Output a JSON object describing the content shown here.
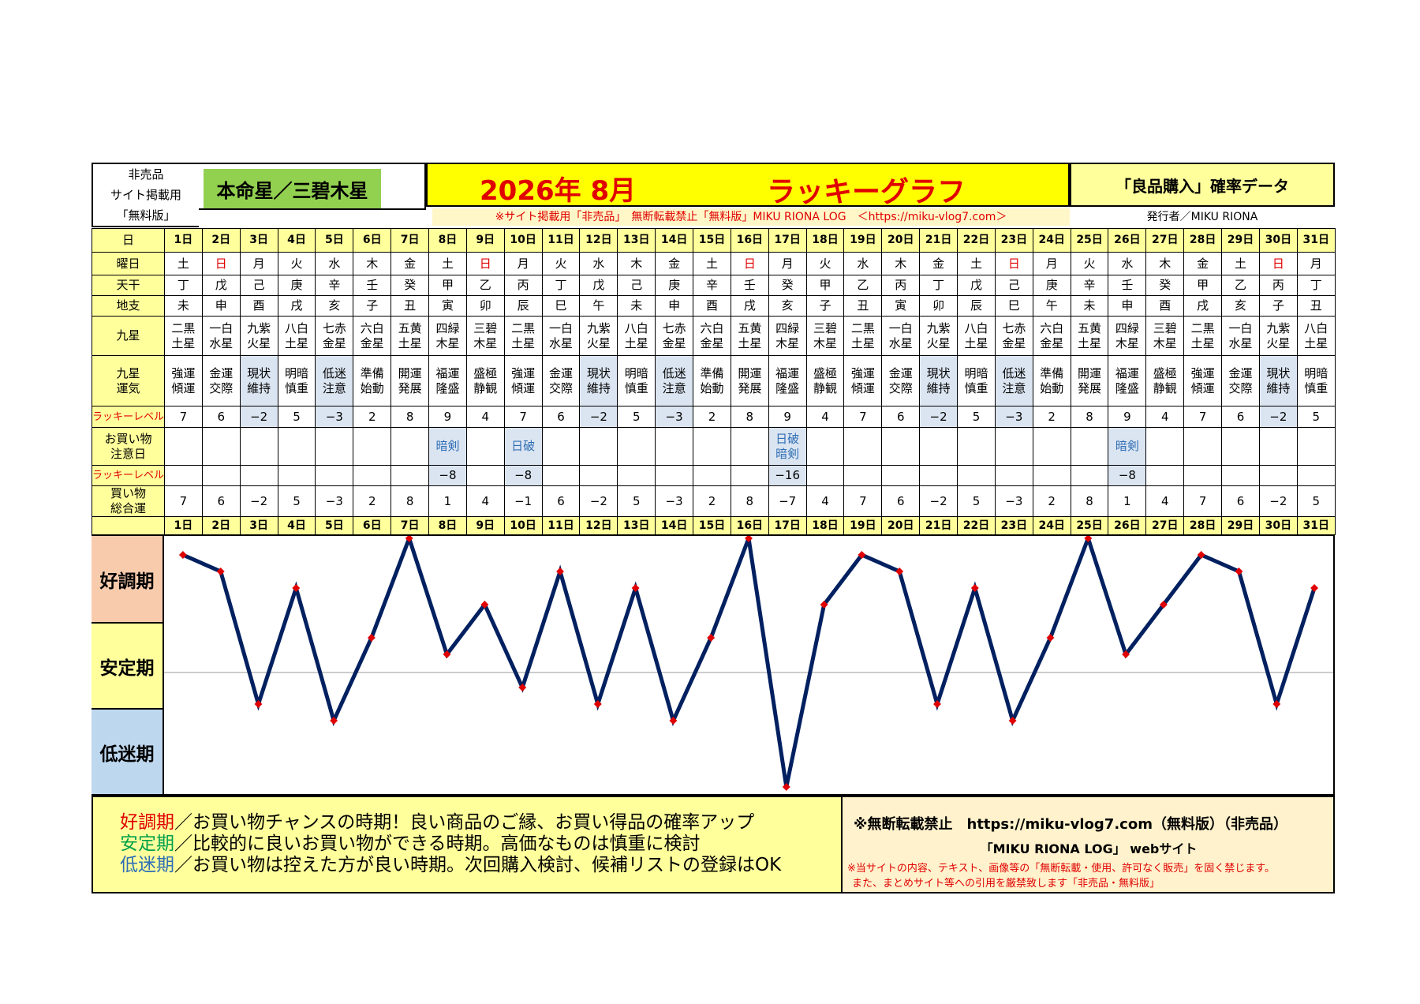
{
  "header": {
    "note_lines": [
      "非売品",
      "サイト掲載用",
      "「無料版」"
    ],
    "honmei": "本命星／三碧木星",
    "year_month": "2026年 8月",
    "lucky_graph": "ラッキーグラフ",
    "right_title": "「良品購入」確率データ",
    "red_notice": "※サイト掲載用「非売品」　無断転載禁止「無料版」MIKU RIONA LOG　＜https://miku-vlog7.com＞",
    "publisher": "発行者／MIKU RIONA"
  },
  "row_labels": {
    "day": "日",
    "weekday": "曜日",
    "tenkan": "天干",
    "chishi": "地支",
    "kyusei": "九星",
    "kyusei_unki": [
      "九星",
      "運気"
    ],
    "lucky_level": "ラッキーレベル",
    "caution": [
      "お買い物",
      "注意日"
    ],
    "lucky_level2": "ラッキーレベル",
    "total": [
      "買い物",
      "総合運"
    ]
  },
  "days": [
    "1日",
    "2日",
    "3日",
    "4日",
    "5日",
    "6日",
    "7日",
    "8日",
    "9日",
    "10日",
    "11日",
    "12日",
    "13日",
    "14日",
    "15日",
    "16日",
    "17日",
    "18日",
    "19日",
    "20日",
    "21日",
    "22日",
    "23日",
    "24日",
    "25日",
    "26日",
    "27日",
    "28日",
    "29日",
    "30日",
    "31日"
  ],
  "weekdays": [
    "土",
    "日",
    "月",
    "火",
    "水",
    "木",
    "金",
    "土",
    "日",
    "月",
    "火",
    "水",
    "木",
    "金",
    "土",
    "日",
    "月",
    "火",
    "水",
    "木",
    "金",
    "土",
    "日",
    "月",
    "火",
    "水",
    "木",
    "金",
    "土",
    "日",
    "月"
  ],
  "tenkan": [
    "丁",
    "戊",
    "己",
    "庚",
    "辛",
    "壬",
    "癸",
    "甲",
    "乙",
    "丙",
    "丁",
    "戊",
    "己",
    "庚",
    "辛",
    "壬",
    "癸",
    "甲",
    "乙",
    "丙",
    "丁",
    "戊",
    "己",
    "庚",
    "辛",
    "壬",
    "癸",
    "甲",
    "乙",
    "丙",
    "丁"
  ],
  "chishi": [
    "未",
    "申",
    "酉",
    "戌",
    "亥",
    "子",
    "丑",
    "寅",
    "卯",
    "辰",
    "巳",
    "午",
    "未",
    "申",
    "酉",
    "戌",
    "亥",
    "子",
    "丑",
    "寅",
    "卯",
    "辰",
    "巳",
    "午",
    "未",
    "申",
    "酉",
    "戌",
    "亥",
    "子",
    "丑"
  ],
  "kyusei": [
    [
      "二黒",
      "土星"
    ],
    [
      "一白",
      "水星"
    ],
    [
      "九紫",
      "火星"
    ],
    [
      "八白",
      "土星"
    ],
    [
      "七赤",
      "金星"
    ],
    [
      "六白",
      "金星"
    ],
    [
      "五黄",
      "土星"
    ],
    [
      "四緑",
      "木星"
    ],
    [
      "三碧",
      "木星"
    ],
    [
      "二黒",
      "土星"
    ],
    [
      "一白",
      "水星"
    ],
    [
      "九紫",
      "火星"
    ],
    [
      "八白",
      "土星"
    ],
    [
      "七赤",
      "金星"
    ],
    [
      "六白",
      "金星"
    ],
    [
      "五黄",
      "土星"
    ],
    [
      "四緑",
      "木星"
    ],
    [
      "三碧",
      "木星"
    ],
    [
      "二黒",
      "土星"
    ],
    [
      "一白",
      "水星"
    ],
    [
      "九紫",
      "火星"
    ],
    [
      "八白",
      "土星"
    ],
    [
      "七赤",
      "金星"
    ],
    [
      "六白",
      "金星"
    ],
    [
      "五黄",
      "土星"
    ],
    [
      "四緑",
      "木星"
    ],
    [
      "三碧",
      "木星"
    ],
    [
      "二黒",
      "土星"
    ],
    [
      "一白",
      "水星"
    ],
    [
      "九紫",
      "火星"
    ],
    [
      "八白",
      "土星"
    ]
  ],
  "unki": [
    [
      "強運",
      "傾運"
    ],
    [
      "金運",
      "交際"
    ],
    [
      "現状",
      "維持"
    ],
    [
      "明暗",
      "慎重"
    ],
    [
      "低迷",
      "注意"
    ],
    [
      "準備",
      "始動"
    ],
    [
      "開運",
      "発展"
    ],
    [
      "福運",
      "隆盛"
    ],
    [
      "盛極",
      "静観"
    ],
    [
      "強運",
      "傾運"
    ],
    [
      "金運",
      "交際"
    ],
    [
      "現状",
      "維持"
    ],
    [
      "明暗",
      "慎重"
    ],
    [
      "低迷",
      "注意"
    ],
    [
      "準備",
      "始動"
    ],
    [
      "開運",
      "発展"
    ],
    [
      "福運",
      "隆盛"
    ],
    [
      "盛極",
      "静観"
    ],
    [
      "強運",
      "傾運"
    ],
    [
      "金運",
      "交際"
    ],
    [
      "現状",
      "維持"
    ],
    [
      "明暗",
      "慎重"
    ],
    [
      "低迷",
      "注意"
    ],
    [
      "準備",
      "始動"
    ],
    [
      "開運",
      "発展"
    ],
    [
      "福運",
      "隆盛"
    ],
    [
      "盛極",
      "静観"
    ],
    [
      "強運",
      "傾運"
    ],
    [
      "金運",
      "交際"
    ],
    [
      "現状",
      "維持"
    ],
    [
      "明暗",
      "慎重"
    ]
  ],
  "lucky_level": [
    "7",
    "6",
    "−2",
    "5",
    "−3",
    "2",
    "8",
    "9",
    "4",
    "7",
    "6",
    "−2",
    "5",
    "−3",
    "2",
    "8",
    "9",
    "4",
    "7",
    "6",
    "−2",
    "5",
    "−3",
    "2",
    "8",
    "9",
    "4",
    "7",
    "6",
    "−2",
    "5"
  ],
  "caution": [
    "",
    "",
    "",
    "",
    "",
    "",
    "",
    [
      "暗剣"
    ],
    "",
    [
      "日破"
    ],
    "",
    "",
    "",
    "",
    "",
    "",
    [
      "日破",
      "暗剣"
    ],
    "",
    "",
    "",
    "",
    "",
    "",
    "",
    "",
    [
      "暗剣"
    ],
    "",
    "",
    "",
    "",
    ""
  ],
  "caution_level": [
    "",
    "",
    "",
    "",
    "",
    "",
    "",
    "−8",
    "",
    "−8",
    "",
    "",
    "",
    "",
    "",
    "",
    "−16",
    "",
    "",
    "",
    "",
    "",
    "",
    "",
    "",
    "−8",
    "",
    "",
    "",
    "",
    ""
  ],
  "total_text": [
    "7",
    "6",
    "−2",
    "5",
    "−3",
    "2",
    "8",
    "1",
    "4",
    "−1",
    "6",
    "−2",
    "5",
    "−3",
    "2",
    "8",
    "−7",
    "4",
    "7",
    "6",
    "−2",
    "5",
    "−3",
    "2",
    "8",
    "1",
    "4",
    "7",
    "6",
    "−2",
    "5"
  ],
  "zones": {
    "good": "好調期",
    "stable": "安定期",
    "low": "低迷期"
  },
  "legend": [
    {
      "term": "好調期",
      "text": "／お買い物チャンスの時期！良い商品のご縁、お買い得品の確率アップ",
      "color": "#e00000"
    },
    {
      "term": "安定期",
      "text": "／比較的に良いお買い物ができる時期。高価なものは慎重に検討",
      "color": "#00a04a"
    },
    {
      "term": "低迷期",
      "text": "／お買い物は控えた方が良い時期。次回購入検討、候補リストの登録はOK",
      "color": "#2f6eb5"
    }
  ],
  "notice": {
    "line1": "※無断転載禁止　https://miku-vlog7.com（無料版）（非売品）",
    "line2": "「MIKU RIONA LOG」 webサイト",
    "line3": "※当サイトの内容、テキスト、画像等の「無断転載・使用、許可なく販売」を固く禁じます。",
    "line4": "また、まとめサイト等への引用を厳禁致します「非売品・無料版」"
  },
  "colors": {
    "line": "#002060",
    "marker": "#e00000",
    "yellow": "#ffff9c",
    "sunday": "#e00000",
    "low_cell": "#dbe5f1",
    "good_zone": "#f8cbad",
    "stable_zone": "#ffff9c",
    "low_zone": "#bdd7ee"
  },
  "chart_data": {
    "type": "line",
    "title": "ラッキーグラフ",
    "x": [
      "1日",
      "2日",
      "3日",
      "4日",
      "5日",
      "6日",
      "7日",
      "8日",
      "9日",
      "10日",
      "11日",
      "12日",
      "13日",
      "14日",
      "15日",
      "16日",
      "17日",
      "18日",
      "19日",
      "20日",
      "21日",
      "22日",
      "23日",
      "24日",
      "25日",
      "26日",
      "27日",
      "28日",
      "29日",
      "30日",
      "31日"
    ],
    "series": [
      {
        "values": [
          7,
          6,
          -2,
          5,
          -3,
          2,
          8,
          1,
          4,
          -1,
          6,
          -2,
          5,
          -3,
          2,
          8,
          -7,
          4,
          7,
          6,
          -2,
          5,
          -3,
          2,
          8,
          1,
          4,
          7,
          6,
          -2,
          5
        ]
      }
    ],
    "ylim": [
      -7,
      8
    ],
    "zones": [
      "好調期",
      "安定期",
      "低迷期"
    ],
    "grid": false
  }
}
